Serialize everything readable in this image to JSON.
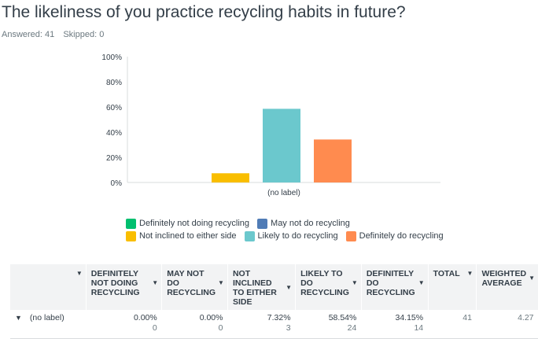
{
  "page": {
    "title": "The likeliness of you practice recycling habits in future?",
    "answered_label": "Answered: 41",
    "skipped_label": "Skipped: 0"
  },
  "chart_data": {
    "type": "bar",
    "categories": [
      "(no label)"
    ],
    "series": [
      {
        "name": "Definitely not doing recycling",
        "color": "#00bf6f",
        "values": [
          0.0
        ]
      },
      {
        "name": "May not do recycling",
        "color": "#507cb6",
        "values": [
          0.0
        ]
      },
      {
        "name": "Not inclined to either side",
        "color": "#f9be00",
        "values": [
          7.32
        ]
      },
      {
        "name": "Likely to do recycling",
        "color": "#6bc8cd",
        "values": [
          58.54
        ]
      },
      {
        "name": "Definitely do recycling",
        "color": "#ff8b4f",
        "values": [
          34.15
        ]
      }
    ],
    "y_ticks": [
      "100%",
      "80%",
      "60%",
      "40%",
      "20%",
      "0%"
    ],
    "ylim": [
      0,
      100
    ],
    "grid": false,
    "legend_position": "bottom"
  },
  "table": {
    "headers": [
      {
        "label": "",
        "caret": "▼"
      },
      {
        "label": "DEFINITELY NOT DOING RECYCLING",
        "caret": "▼"
      },
      {
        "label": "MAY NOT DO RECYCLING",
        "caret": "▼"
      },
      {
        "label": "NOT INCLINED TO EITHER SIDE",
        "caret": "▼"
      },
      {
        "label": "LIKELY TO DO RECYCLING",
        "caret": "▼"
      },
      {
        "label": "DEFINITELY DO RECYCLING",
        "caret": "▼"
      },
      {
        "label": "TOTAL",
        "caret": "▼"
      },
      {
        "label": "WEIGHTED AVERAGE",
        "caret": "▼"
      }
    ],
    "row": {
      "caret": "▼",
      "label": "(no label)",
      "cells": [
        {
          "pct": "0.00%",
          "count": "0"
        },
        {
          "pct": "0.00%",
          "count": "0"
        },
        {
          "pct": "7.32%",
          "count": "3"
        },
        {
          "pct": "58.54%",
          "count": "24"
        },
        {
          "pct": "34.15%",
          "count": "14"
        }
      ],
      "total": "41",
      "weighted_average": "4.27"
    }
  }
}
